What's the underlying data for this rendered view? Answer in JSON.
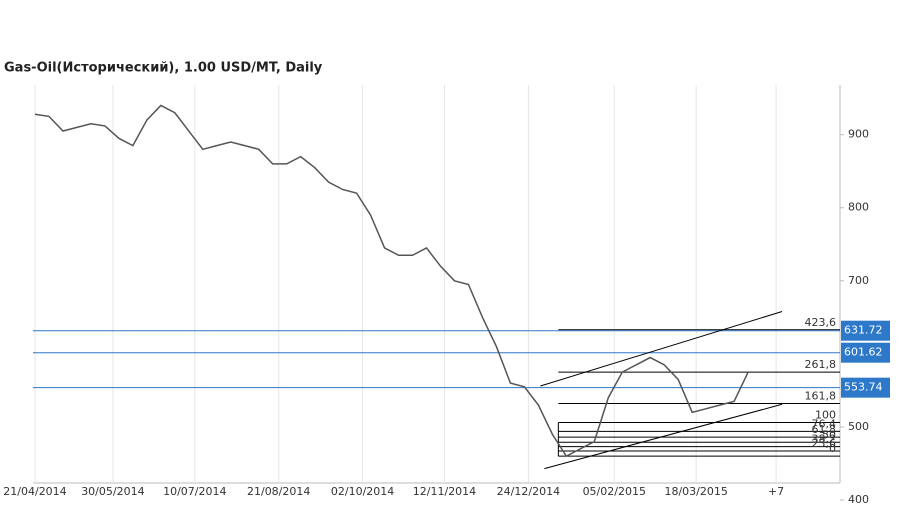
{
  "chart_data": {
    "type": "line",
    "title": "Gas-Oil(Исторический), 1.00 USD/MT, Daily",
    "x": [
      "21/04/2014",
      "28/04/2014",
      "05/05/2014",
      "12/05/2014",
      "19/05/2014",
      "26/05/2014",
      "02/06/2014",
      "09/06/2014",
      "16/06/2014",
      "23/06/2014",
      "30/06/2014",
      "07/07/2014",
      "14/07/2014",
      "21/07/2014",
      "28/07/2014",
      "04/08/2014",
      "11/08/2014",
      "18/08/2014",
      "25/08/2014",
      "01/09/2014",
      "08/09/2014",
      "15/09/2014",
      "22/09/2014",
      "29/09/2014",
      "06/10/2014",
      "13/10/2014",
      "20/10/2014",
      "27/10/2014",
      "03/11/2014",
      "10/11/2014",
      "17/11/2014",
      "24/11/2014",
      "01/12/2014",
      "08/12/2014",
      "15/12/2014",
      "22/12/2014",
      "29/12/2014",
      "05/01/2015",
      "12/01/2015",
      "19/01/2015",
      "26/01/2015",
      "02/02/2015",
      "09/02/2015",
      "16/02/2015",
      "23/02/2015",
      "02/03/2015",
      "09/03/2015",
      "16/03/2015",
      "23/03/2015",
      "30/03/2015",
      "06/04/2015",
      "13/04/2015"
    ],
    "series": [
      {
        "color": "#555555",
        "values": [
          928,
          925,
          905,
          910,
          915,
          912,
          895,
          885,
          920,
          940,
          930,
          905,
          880,
          885,
          890,
          885,
          880,
          860,
          860,
          870,
          855,
          835,
          825,
          820,
          790,
          745,
          735,
          735,
          745,
          720,
          700,
          695,
          650,
          610,
          560,
          555,
          530,
          490,
          460,
          470,
          480,
          540,
          575,
          585,
          595,
          585,
          565,
          520,
          525,
          530,
          535,
          575
        ]
      }
    ],
    "xlim": [
      "20/04/2014",
      "29/05/2015"
    ],
    "xticks": [
      {
        "value": "21/04/2014",
        "label": "21/04/2014"
      },
      {
        "value": "30/05/2014",
        "label": "30/05/2014"
      },
      {
        "value": "10/07/2014",
        "label": "10/07/2014"
      },
      {
        "value": "21/08/2014",
        "label": "21/08/2014"
      },
      {
        "value": "02/10/2014",
        "label": "02/10/2014"
      },
      {
        "value": "12/11/2014",
        "label": "12/11/2014"
      },
      {
        "value": "24/12/2014",
        "label": "24/12/2014"
      },
      {
        "value": "05/02/2015",
        "label": "05/02/2015"
      },
      {
        "value": "18/03/2015",
        "label": "18/03/2015"
      },
      {
        "value": "27/04/2015",
        "label": "+7"
      }
    ],
    "ylim": [
      400,
      968
    ],
    "yticks": [
      400,
      500,
      700,
      800,
      900
    ],
    "price_levels": [
      {
        "value": 631.72,
        "label": "631.72"
      },
      {
        "value": 601.62,
        "label": "601.62"
      },
      {
        "value": 553.74,
        "label": "553.74"
      }
    ],
    "fib_levels": [
      {
        "value": 633,
        "label": "423,6"
      },
      {
        "value": 575,
        "label": "261,8"
      },
      {
        "value": 532,
        "label": "161,8"
      },
      {
        "value": 506,
        "label": "100"
      },
      {
        "value": 494,
        "label": "76,4"
      },
      {
        "value": 486,
        "label": "61,8"
      },
      {
        "value": 479,
        "label": "50"
      },
      {
        "value": 473,
        "label": "38,2"
      },
      {
        "value": 467,
        "label": "23,6"
      },
      {
        "value": 460,
        "label": "0"
      }
    ],
    "fib_range": [
      "08/01/2015",
      "29/05/2015"
    ],
    "trend_lines": [
      {
        "x": [
          "30/12/2014",
          "30/04/2015"
        ],
        "values": [
          556,
          658
        ]
      },
      {
        "x": [
          "01/01/2015",
          "30/04/2015"
        ],
        "values": [
          443,
          531
        ]
      }
    ]
  }
}
